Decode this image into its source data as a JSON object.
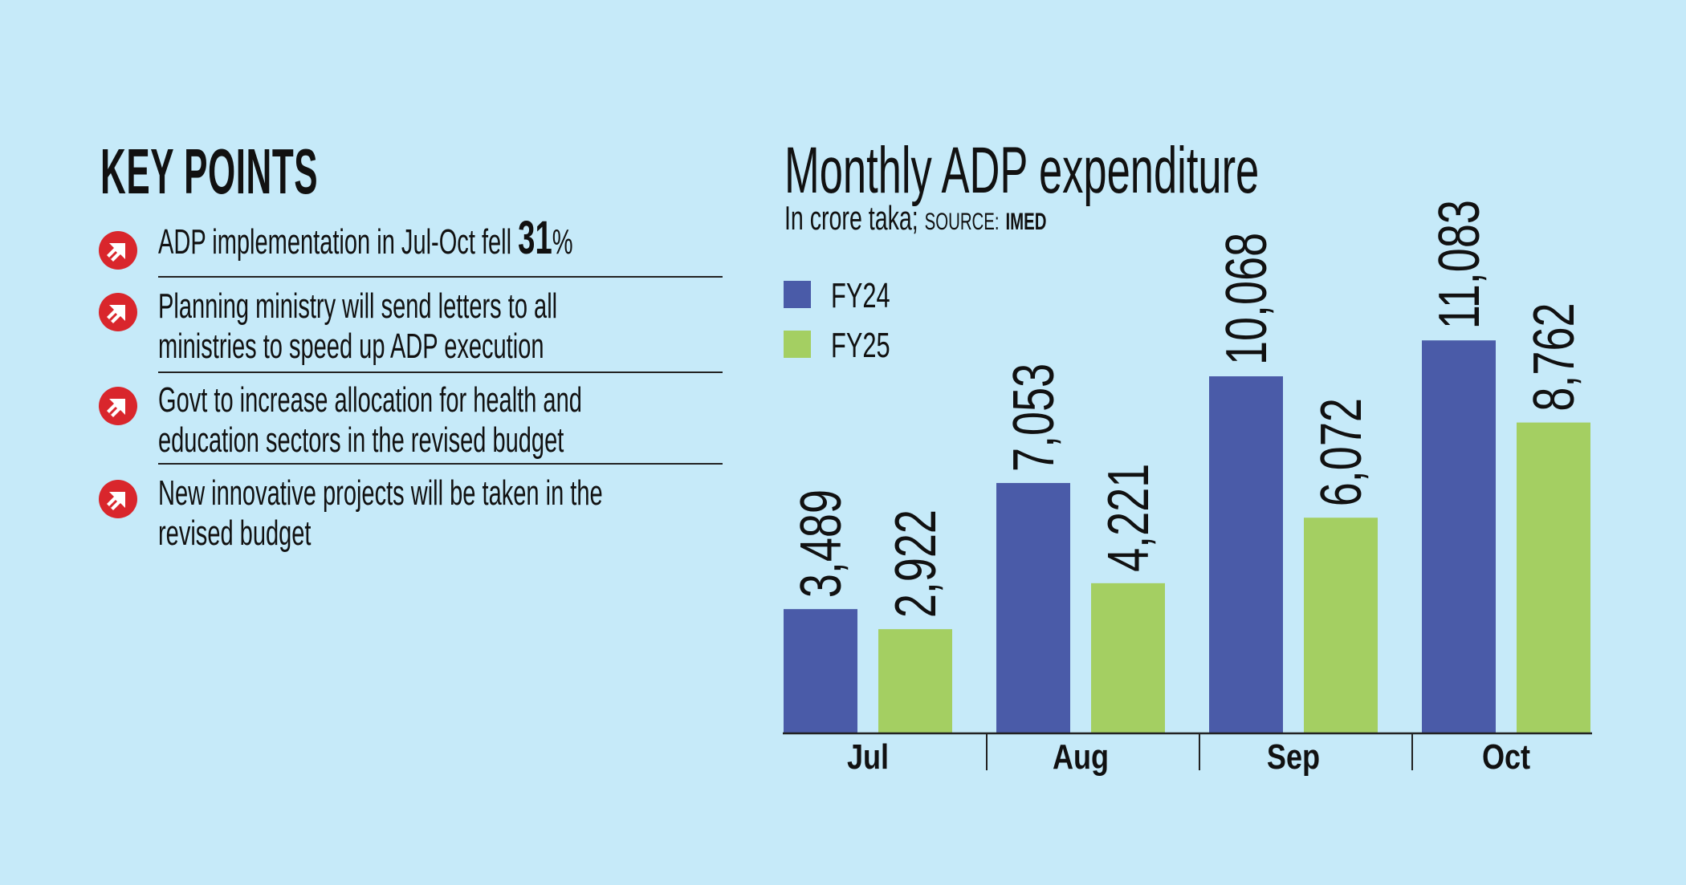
{
  "key_points": {
    "title": "KEY POINTS",
    "items": [
      {
        "lines": [
          "ADP implementation in Jul-Oct fell"
        ],
        "highlight": "31",
        "suffix": "%"
      },
      {
        "lines": [
          "Planning ministry will send letters to all",
          "ministries to speed up ADP execution"
        ]
      },
      {
        "lines": [
          "Govt to increase allocation for health and",
          "education sectors in the revised budget"
        ]
      },
      {
        "lines": [
          "New innovative projects will be taken in the",
          "revised budget"
        ]
      }
    ],
    "icon": "red-circle-arrow-icon"
  },
  "colors": {
    "background": "#c6eaf9",
    "fy24": "#4a5ba8",
    "fy25": "#a4cf62",
    "bullet": "#d9262c"
  },
  "chart_data": {
    "type": "bar",
    "title": "Monthly ADP expenditure",
    "subtitle": "In crore taka;",
    "source_label": "SOURCE:",
    "source": "IMED",
    "categories": [
      "Jul",
      "Aug",
      "Sep",
      "Oct"
    ],
    "series": [
      {
        "name": "FY24",
        "values": [
          3489,
          7053,
          10068,
          11083
        ],
        "labels": [
          "3,489",
          "7,053",
          "10,068",
          "11,083"
        ]
      },
      {
        "name": "FY25",
        "values": [
          2922,
          4221,
          6072,
          8762
        ],
        "labels": [
          "2,922",
          "4,221",
          "6,072",
          "8,762"
        ]
      }
    ],
    "legend_position": "top-left",
    "ylim": [
      0,
      12000
    ],
    "grid": false
  }
}
